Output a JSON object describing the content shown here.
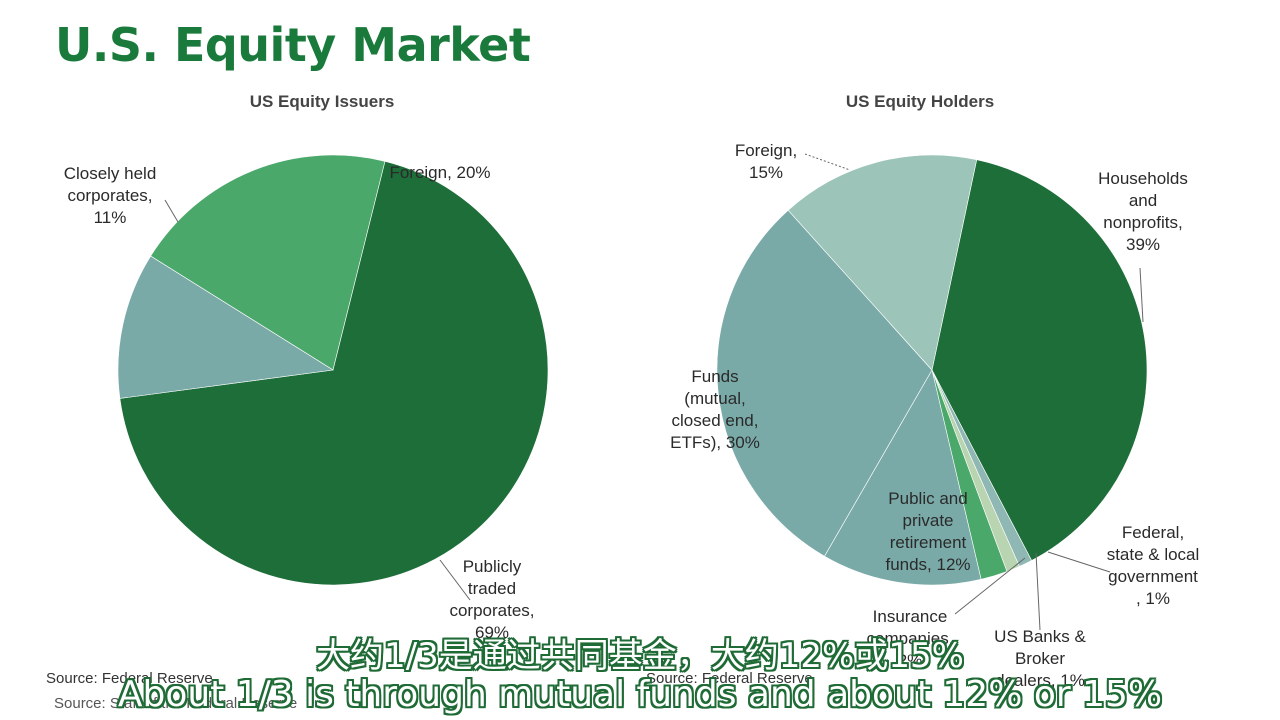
{
  "page": {
    "title": "U.S. Equity Market",
    "source_left": "Source: Federal Reserve",
    "source_left_ghost": "Source: Staff of the Federal Reserve",
    "source_right": "Source: Federal Reserve",
    "subtitle_cn": "大约1/3是通过共同基金，大约12%或15%",
    "subtitle_en": "About 1/3 is through mutual funds and about 12% or 15%"
  },
  "chart_data": [
    {
      "type": "pie",
      "title": "US Equity Issuers",
      "slices": [
        {
          "label": [
            "Foreign, 20%"
          ],
          "value": 20,
          "color": "#4aa86a"
        },
        {
          "label": [
            "Publicly",
            "traded",
            "corporates,",
            "69%"
          ],
          "value": 69,
          "color": "#1e6e3a"
        },
        {
          "label": [
            "Closely held",
            "corporates,",
            "11%"
          ],
          "value": 11,
          "color": "#7aaaa8"
        }
      ]
    },
    {
      "type": "pie",
      "title": "US Equity Holders",
      "slices": [
        {
          "label": [
            "Households",
            "and",
            "nonprofits,",
            "39%"
          ],
          "value": 39,
          "color": "#1e6e3a"
        },
        {
          "label": [
            "Federal,",
            "state & local",
            "government",
            ", 1%"
          ],
          "value": 1,
          "color": "#8fb8b5"
        },
        {
          "label": [
            "US Banks &",
            "Broker",
            "dealers, 1%"
          ],
          "value": 1,
          "color": "#b8d4b0"
        },
        {
          "label": [
            "Insurance",
            "companies,",
            "2%"
          ],
          "value": 2,
          "color": "#4aa86a"
        },
        {
          "label": [
            "Public and",
            "private",
            "retirement",
            "funds, 12%"
          ],
          "value": 12,
          "color": "#7aaaa8"
        },
        {
          "label": [
            "Funds",
            "(mutual,",
            "closed end,",
            "ETFs), 30%"
          ],
          "value": 30,
          "color": "#7aaaa8"
        },
        {
          "label": [
            "Foreign,",
            "15%"
          ],
          "value": 15,
          "color": "#9cc4b8"
        }
      ]
    }
  ]
}
